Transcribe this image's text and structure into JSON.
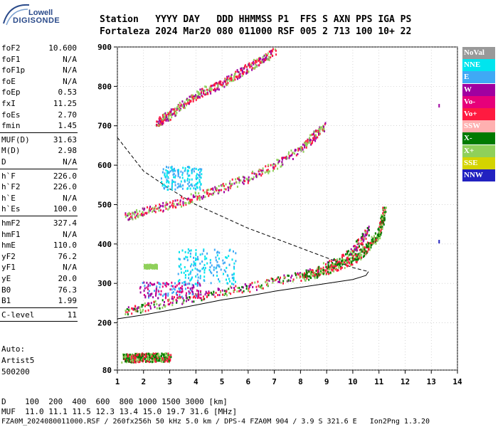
{
  "logo": {
    "top": "Lowell",
    "bottom": "DIGISONDE"
  },
  "header": {
    "line1": "Station   YYYY DAY   DDD HHMMSS P1  FFS S AXN PPS IGA PS",
    "line2": "Fortaleza 2024 Mar20 080 011000 RSF 005 2 713 100 10+ 22"
  },
  "params": [
    {
      "k": "foF2",
      "v": "10.600"
    },
    {
      "k": "foF1",
      "v": "N/A"
    },
    {
      "k": "foF1p",
      "v": "N/A"
    },
    {
      "k": "foE",
      "v": "N/A"
    },
    {
      "k": "foEp",
      "v": "0.53"
    },
    {
      "k": "fxI",
      "v": "11.25"
    },
    {
      "k": "foEs",
      "v": "2.70"
    },
    {
      "k": "fmin",
      "v": "1.45"
    },
    {
      "k": "MUF(D)",
      "v": "31.63"
    },
    {
      "k": "M(D)",
      "v": "2.98"
    },
    {
      "k": "D",
      "v": "N/A"
    },
    {
      "k": "h`F",
      "v": "226.0"
    },
    {
      "k": "h`F2",
      "v": "226.0"
    },
    {
      "k": "h`E",
      "v": "N/A"
    },
    {
      "k": "h`Es",
      "v": "100.0"
    },
    {
      "k": "hmF2",
      "v": "327.4"
    },
    {
      "k": "hmF1",
      "v": "N/A"
    },
    {
      "k": "hmE",
      "v": "110.0"
    },
    {
      "k": "yF2",
      "v": "76.2"
    },
    {
      "k": "yF1",
      "v": "N/A"
    },
    {
      "k": "yE",
      "v": "20.0"
    },
    {
      "k": "B0",
      "v": "76.3"
    },
    {
      "k": "B1",
      "v": "1.99"
    },
    {
      "k": "C-level",
      "v": "11"
    }
  ],
  "auto": {
    "l1": "Auto:",
    "l2": "Artist5",
    "l3": "500200"
  },
  "footer": {
    "d_row": "D    100  200  400  600  800 1000 1500 3000 [km]",
    "muf_row": "MUF  11.0 11.1 11.5 12.3 13.4 15.0 19.7 31.6 [MHz]",
    "info_row": "FZA0M_2024080011000.RSF / 260fx256h 50 kHz 5.0 km / DPS-4 FZA0M 904 / 3.9 S 321.6 E   Ion2Png 1.3.20"
  },
  "legend": [
    {
      "label": "NoVal",
      "color": "#999999",
      "text": "#ffffff"
    },
    {
      "label": "NNE",
      "color": "#00e5ee",
      "text": "#ffffff"
    },
    {
      "label": "E",
      "color": "#3fa9f5",
      "text": "#ffffff"
    },
    {
      "label": "W",
      "color": "#a000a0",
      "text": "#ffffff"
    },
    {
      "label": "Vo-",
      "color": "#e6007a",
      "text": "#ffffff"
    },
    {
      "label": "Vo+",
      "color": "#ff1a40",
      "text": "#ffffff"
    },
    {
      "label": "SSW",
      "color": "#ffb0b0",
      "text": "#ffffff"
    },
    {
      "label": "X-",
      "color": "#007a00",
      "text": "#ffffff"
    },
    {
      "label": "X+",
      "color": "#8fd05a",
      "text": "#ffffff"
    },
    {
      "label": "SSE",
      "color": "#d4d400",
      "text": "#ffffff"
    },
    {
      "label": "NNW",
      "color": "#2222c0",
      "text": "#ffffff"
    }
  ],
  "chart_data": {
    "type": "scatter",
    "xlim": [
      1,
      14
    ],
    "ylim": [
      80,
      900
    ],
    "x_ticks": [
      1,
      2,
      3,
      4,
      5,
      6,
      7,
      8,
      9,
      10,
      11,
      12,
      13,
      14
    ],
    "y_ticks": [
      80,
      200,
      300,
      400,
      500,
      600,
      700,
      800,
      900
    ],
    "dashed_curve": [
      [
        1,
        670
      ],
      [
        2,
        585
      ],
      [
        3,
        540
      ],
      [
        4,
        500
      ],
      [
        5,
        470
      ],
      [
        6,
        440
      ],
      [
        7,
        415
      ],
      [
        8,
        390
      ],
      [
        9,
        365
      ],
      [
        10,
        340
      ],
      [
        10.6,
        330
      ]
    ],
    "solid_curve": [
      [
        1,
        210
      ],
      [
        2,
        220
      ],
      [
        3,
        232
      ],
      [
        4,
        245
      ],
      [
        5,
        258
      ],
      [
        6,
        268
      ],
      [
        7,
        280
      ],
      [
        8,
        290
      ],
      [
        9,
        300
      ],
      [
        10,
        310
      ],
      [
        10.5,
        320
      ],
      [
        10.6,
        330
      ]
    ],
    "echo_traces": [
      {
        "name": "F2 O-trace",
        "pts": [
          [
            1.3,
            232
          ],
          [
            2,
            240
          ],
          [
            3,
            255
          ],
          [
            4,
            268
          ],
          [
            5,
            280
          ],
          [
            6,
            292
          ],
          [
            7,
            308
          ],
          [
            8,
            322
          ],
          [
            9,
            345
          ],
          [
            9.5,
            360
          ],
          [
            10,
            385
          ],
          [
            10.3,
            410
          ],
          [
            10.6,
            440
          ]
        ],
        "colors": [
          "#ff1a40",
          "#a000a0",
          "#8fd05a",
          "#007a00"
        ]
      },
      {
        "name": "F2 X-trace",
        "pts": [
          [
            8,
            318
          ],
          [
            9,
            335
          ],
          [
            10,
            360
          ],
          [
            10.5,
            390
          ],
          [
            11,
            430
          ],
          [
            11.2,
            490
          ]
        ],
        "colors": [
          "#8fd05a",
          "#007a00",
          "#ff1a40"
        ]
      },
      {
        "name": "2F multi-hop",
        "pts": [
          [
            1.3,
            470
          ],
          [
            2,
            485
          ],
          [
            3,
            500
          ],
          [
            4,
            522
          ],
          [
            5,
            545
          ],
          [
            6,
            570
          ],
          [
            7,
            600
          ],
          [
            8,
            645
          ],
          [
            8.5,
            675
          ],
          [
            8.9,
            700
          ]
        ],
        "colors": [
          "#ff1a40",
          "#a000a0",
          "#8fd05a"
        ]
      },
      {
        "name": "3F multi-hop",
        "pts": [
          [
            2.5,
            710
          ],
          [
            3,
            730
          ],
          [
            4,
            780
          ],
          [
            5,
            810
          ],
          [
            6,
            850
          ],
          [
            7,
            890
          ]
        ],
        "colors": [
          "#ff1a40",
          "#8fd05a",
          "#a000a0"
        ]
      },
      {
        "name": "Es layer",
        "pts": [
          [
            1.2,
            112
          ],
          [
            2,
            114
          ],
          [
            3,
            114
          ]
        ],
        "colors": [
          "#8fd05a",
          "#007a00",
          "#ff1a40"
        ]
      }
    ],
    "scatter_blobs": [
      {
        "x": [
          1.8,
          4.2
        ],
        "y": [
          265,
          305
        ],
        "colors": [
          "#a000a0",
          "#e6007a",
          "#3fa9f5"
        ]
      },
      {
        "x": [
          2.6,
          4.2
        ],
        "y": [
          540,
          600
        ],
        "colors": [
          "#3fa9f5",
          "#00e5ee"
        ]
      },
      {
        "x": [
          3.3,
          5.5
        ],
        "y": [
          300,
          390
        ],
        "colors": [
          "#3fa9f5",
          "#00e5ee"
        ]
      },
      {
        "x": [
          2.0,
          2.5
        ],
        "y": [
          340,
          350
        ],
        "colors": [
          "#8fd05a"
        ]
      }
    ],
    "points": [
      {
        "x": 13.3,
        "y": 750,
        "color": "#a000a0"
      },
      {
        "x": 13.3,
        "y": 405,
        "color": "#2222c0"
      }
    ]
  }
}
